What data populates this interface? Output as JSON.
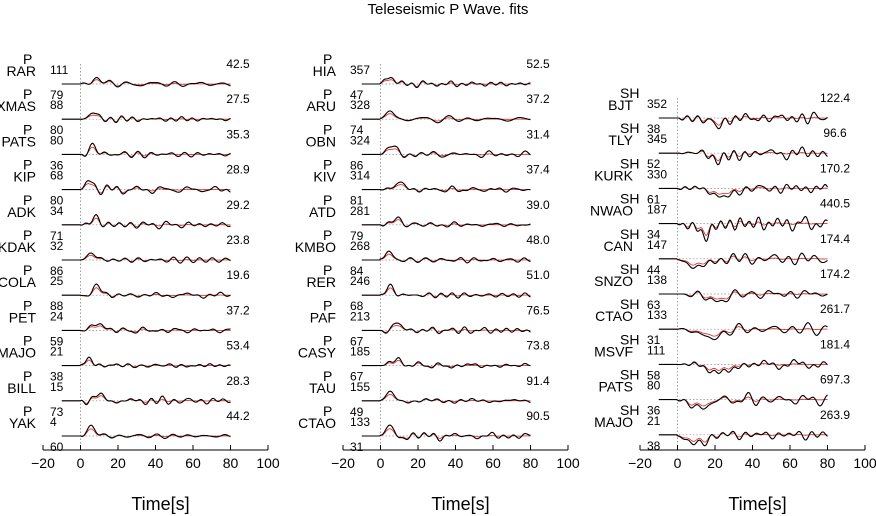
{
  "chart_data": {
    "type": "line",
    "title": "Teleseismic P Wave. fits",
    "xlabel": "Time[s]",
    "xlim": [
      -20,
      100
    ],
    "xticks": [
      "−20",
      "0",
      "20",
      "40",
      "60",
      "80",
      "100"
    ],
    "panels": [
      {
        "traces": [
          {
            "phase": "P",
            "station": "RAR",
            "azimuth": "111",
            "distance": "79",
            "amplitude": "42.5"
          },
          {
            "phase": "P",
            "station": "XMAS",
            "azimuth": "88",
            "distance": "80",
            "amplitude": "27.5"
          },
          {
            "phase": "P",
            "station": "PATS",
            "azimuth": "80",
            "distance": "36",
            "amplitude": "35.3"
          },
          {
            "phase": "P",
            "station": "KIP",
            "azimuth": "68",
            "distance": "80",
            "amplitude": "28.9"
          },
          {
            "phase": "P",
            "station": "ADK",
            "azimuth": "34",
            "distance": "71",
            "amplitude": "29.2"
          },
          {
            "phase": "P",
            "station": "KDAK",
            "azimuth": "32",
            "distance": "86",
            "amplitude": "23.8"
          },
          {
            "phase": "P",
            "station": "COLA",
            "azimuth": "25",
            "distance": "88",
            "amplitude": "19.6"
          },
          {
            "phase": "P",
            "station": "PET",
            "azimuth": "24",
            "distance": "59",
            "amplitude": "37.2"
          },
          {
            "phase": "P",
            "station": "MAJO",
            "azimuth": "21",
            "distance": "38",
            "amplitude": "53.4"
          },
          {
            "phase": "P",
            "station": "BILL",
            "azimuth": "15",
            "distance": "73",
            "amplitude": "28.3"
          },
          {
            "phase": "P",
            "station": "YAK",
            "azimuth": "4",
            "distance": "60",
            "amplitude": "44.2"
          }
        ]
      },
      {
        "traces": [
          {
            "phase": "P",
            "station": "HIA",
            "azimuth": "357",
            "distance": "47",
            "amplitude": "52.5"
          },
          {
            "phase": "P",
            "station": "ARU",
            "azimuth": "328",
            "distance": "74",
            "amplitude": "37.2"
          },
          {
            "phase": "P",
            "station": "OBN",
            "azimuth": "324",
            "distance": "86",
            "amplitude": "31.4"
          },
          {
            "phase": "P",
            "station": "KIV",
            "azimuth": "314",
            "distance": "81",
            "amplitude": "37.4"
          },
          {
            "phase": "P",
            "station": "ATD",
            "azimuth": "281",
            "distance": "79",
            "amplitude": "39.0"
          },
          {
            "phase": "P",
            "station": "KMBO",
            "azimuth": "268",
            "distance": "84",
            "amplitude": "48.0"
          },
          {
            "phase": "P",
            "station": "RER",
            "azimuth": "246",
            "distance": "68",
            "amplitude": "51.0"
          },
          {
            "phase": "P",
            "station": "PAF",
            "azimuth": "213",
            "distance": "67",
            "amplitude": "76.5"
          },
          {
            "phase": "P",
            "station": "CASY",
            "azimuth": "185",
            "distance": "67",
            "amplitude": "73.8"
          },
          {
            "phase": "P",
            "station": "TAU",
            "azimuth": "155",
            "distance": "49",
            "amplitude": "91.4"
          },
          {
            "phase": "P",
            "station": "CTAO",
            "azimuth": "133",
            "distance": "31",
            "amplitude": "90.5"
          }
        ]
      },
      {
        "traces": [
          {
            "phase": "SH",
            "station": "BJT",
            "azimuth": "352",
            "distance": "38",
            "amplitude": "122.4"
          },
          {
            "phase": "SH",
            "station": "TLY",
            "azimuth": "345",
            "distance": "52",
            "amplitude": "96.6"
          },
          {
            "phase": "SH",
            "station": "KURK",
            "azimuth": "330",
            "distance": "61",
            "amplitude": "170.2"
          },
          {
            "phase": "SH",
            "station": "NWAO",
            "azimuth": "187",
            "distance": "34",
            "amplitude": "440.5"
          },
          {
            "phase": "SH",
            "station": "CAN",
            "azimuth": "147",
            "distance": "44",
            "amplitude": "174.4"
          },
          {
            "phase": "SH",
            "station": "SNZO",
            "azimuth": "138",
            "distance": "63",
            "amplitude": "174.2"
          },
          {
            "phase": "SH",
            "station": "CTAO",
            "azimuth": "133",
            "distance": "31",
            "amplitude": "261.7"
          },
          {
            "phase": "SH",
            "station": "MSVF",
            "azimuth": "111",
            "distance": "58",
            "amplitude": "181.4"
          },
          {
            "phase": "SH",
            "station": "PATS",
            "azimuth": "80",
            "distance": "36",
            "amplitude": "697.3"
          },
          {
            "phase": "SH",
            "station": "MAJO",
            "azimuth": "21",
            "distance": "38",
            "amplitude": "263.9"
          }
        ]
      }
    ],
    "colors": {
      "observed": "#000000",
      "synthetic": "#e02020",
      "reference": "#888888",
      "axis": "#000000"
    }
  }
}
